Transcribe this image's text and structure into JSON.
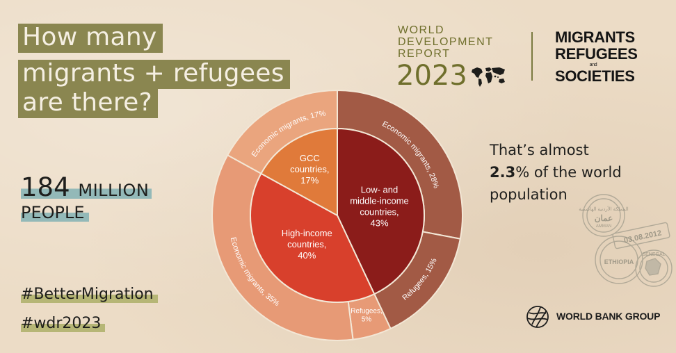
{
  "headline": [
    "How many",
    "migrants + refugees",
    "are there?"
  ],
  "stat": {
    "number": "184",
    "unit": "MILLION",
    "line2": "PEOPLE"
  },
  "hashtags": [
    "#BetterMigration",
    "#wdr2023"
  ],
  "report": {
    "lines": [
      "WORLD",
      "DEVELOPMENT",
      "REPORT"
    ],
    "year": "2023"
  },
  "theme": {
    "lines": [
      "MIGRANTS",
      "REFUGEES",
      "SOCIETIES"
    ],
    "and": "and"
  },
  "callout": {
    "pre": "That’s almost",
    "highlight": "2.3",
    "post": "% of the world population"
  },
  "stamps": {
    "stamp1": "المملكة الأردنية الهاشمية",
    "stamp1_sub": "عمان",
    "stamp1_en": "AMMAN",
    "stamp2": "ETHIOPIA",
    "date": "03.08.2012",
    "stamp3": "SENEGAL"
  },
  "brand": {
    "name": "WORLD BANK GROUP"
  },
  "colors": {
    "low_middle": "#8b1c1a",
    "high": "#d8402c",
    "gcc": "#e07a3a",
    "outer_lm": "#a25a45",
    "outer_hi": "#e79a76",
    "outer_gcc": "#eaa57e",
    "olive": "#8a8650",
    "teal": "#93b9b8"
  },
  "chart_data": {
    "type": "pie",
    "inner": [
      {
        "label_lines": [
          "Low- and",
          "middle-income",
          "countries,",
          "43%"
        ],
        "value": 43
      },
      {
        "label_lines": [
          "High-income",
          "countries,",
          "40%"
        ],
        "value": 40
      },
      {
        "label_lines": [
          "GCC",
          "countries,",
          "17%"
        ],
        "value": 17
      }
    ],
    "outer": [
      {
        "label": "Economic migrants, 28%",
        "value": 28
      },
      {
        "label": "Refugees, 15%",
        "value": 15
      },
      {
        "label_lines": [
          "Refugees,",
          "5%"
        ],
        "value": 5
      },
      {
        "label": "Economic migrants, 35%",
        "value": 35
      },
      {
        "label": "Economic migrants, 17%",
        "value": 17
      }
    ]
  }
}
